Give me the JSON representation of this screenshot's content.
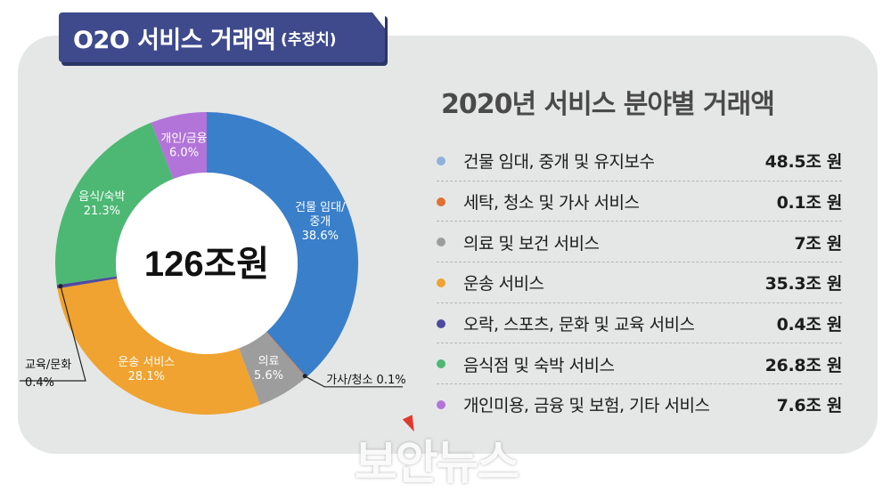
{
  "header": {
    "title": "O2O 서비스 거래액",
    "subtitle": "(추정치)"
  },
  "right_title": "2020년 서비스 분야별 거래액",
  "center_total": "126조원",
  "watermark": "보안뉴스",
  "colors": {
    "panel": "#e5e7e6",
    "title_tab": "#3e4a8c"
  },
  "chart_data": {
    "type": "pie",
    "donut": true,
    "slices": [
      {
        "label": "건물 임대/ 중개",
        "label_lines": [
          "건물 임대/",
          "중개"
        ],
        "pct_label": "38.6%",
        "percent": 38.6,
        "color": "#3a7fc9",
        "label_outside": false
      },
      {
        "label": "가사/청소",
        "label_lines": [
          "가사/청소 0.1%"
        ],
        "pct_label": "",
        "percent": 0.1,
        "color": "#e2702f",
        "label_outside": true
      },
      {
        "label": "의료",
        "label_lines": [
          "의료"
        ],
        "pct_label": "5.6%",
        "percent": 5.6,
        "color": "#9d9d9d",
        "label_outside": false
      },
      {
        "label": "운송 서비스",
        "label_lines": [
          "운송 서비스"
        ],
        "pct_label": "28.1%",
        "percent": 28.1,
        "color": "#f0a330",
        "label_outside": false
      },
      {
        "label": "교육/문화",
        "label_lines": [
          "교육/문화",
          "0.4%"
        ],
        "pct_label": "",
        "percent": 0.4,
        "color": "#4f4a9d",
        "label_outside": true
      },
      {
        "label": "음식/숙박",
        "label_lines": [
          "음식/숙박"
        ],
        "pct_label": "21.3%",
        "percent": 21.3,
        "color": "#4cb873",
        "label_outside": false
      },
      {
        "label": "개인/금융",
        "label_lines": [
          "개인/금융"
        ],
        "pct_label": "6.0%",
        "percent": 6.0,
        "color": "#b274d9",
        "label_outside": false
      }
    ]
  },
  "legend": [
    {
      "label": "건물 임대, 중개 및 유지보수",
      "value": "48.5조 원",
      "color": "#8fb1dc"
    },
    {
      "label": "세탁, 청소 및 가사 서비스",
      "value": "0.1조 원",
      "color": "#e2702f"
    },
    {
      "label": "의료 및 보건 서비스",
      "value": "7조 원",
      "color": "#9d9d9d"
    },
    {
      "label": "운송 서비스",
      "value": "35.3조 원",
      "color": "#f0a330"
    },
    {
      "label": "오락, 스포츠, 문화 및 교육 서비스",
      "value": "0.4조 원",
      "color": "#4f4a9d"
    },
    {
      "label": "음식점 및 숙박 서비스",
      "value": "26.8조 원",
      "color": "#4cb873"
    },
    {
      "label": "개인미용, 금융 및 보험, 기타 서비스",
      "value": "7.6조 원",
      "color": "#b274d9"
    }
  ]
}
